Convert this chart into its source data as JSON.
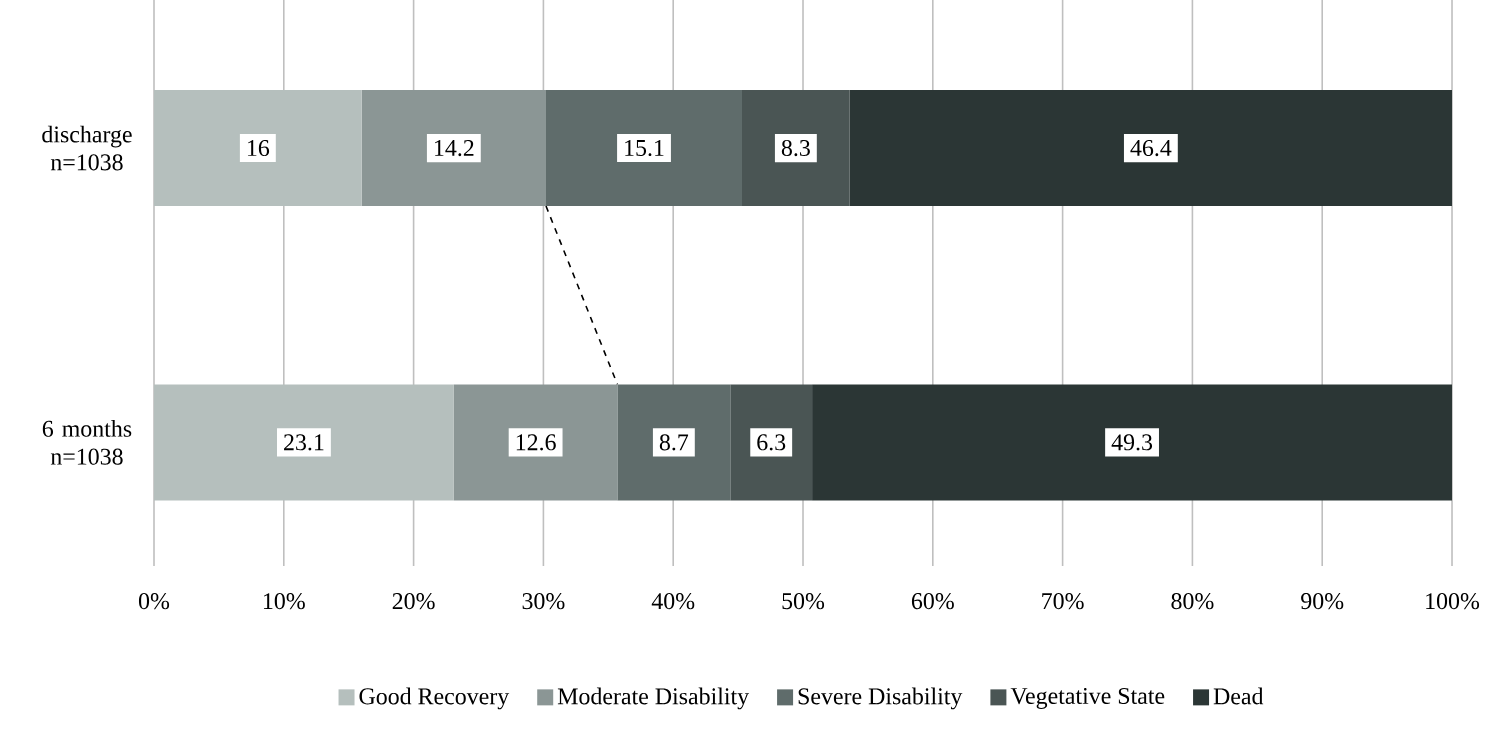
{
  "chart_data": {
    "type": "bar",
    "orientation": "horizontal",
    "stacked": true,
    "categories": [
      "discharge n=1038",
      "6 months n=1038"
    ],
    "series": [
      {
        "name": "Good Recovery",
        "color": "#b5bfbd",
        "values": [
          16,
          23.1
        ]
      },
      {
        "name": "Moderate Disability",
        "color": "#8b9695",
        "values": [
          14.2,
          12.6
        ]
      },
      {
        "name": "Severe Disability",
        "color": "#5f6c6b",
        "values": [
          15.1,
          8.7
        ]
      },
      {
        "name": "Vegetative State",
        "color": "#4a5554",
        "values": [
          8.3,
          6.3
        ]
      },
      {
        "name": "Dead",
        "color": "#2b3635",
        "values": [
          46.4,
          49.3
        ]
      }
    ],
    "xlim": [
      0,
      100
    ],
    "xticks": [
      {
        "value": 0,
        "label": "0%"
      },
      {
        "value": 10,
        "label": "10%"
      },
      {
        "value": 20,
        "label": "20%"
      },
      {
        "value": 30,
        "label": "30%"
      },
      {
        "value": 40,
        "label": "40%"
      },
      {
        "value": 50,
        "label": "50%"
      },
      {
        "value": 60,
        "label": "60%"
      },
      {
        "value": 70,
        "label": "70%"
      },
      {
        "value": 80,
        "label": "80%"
      },
      {
        "value": 90,
        "label": "90%"
      },
      {
        "value": 100,
        "label": "100%"
      }
    ],
    "grid": "x",
    "legend": "bottom",
    "data_labels": true
  }
}
